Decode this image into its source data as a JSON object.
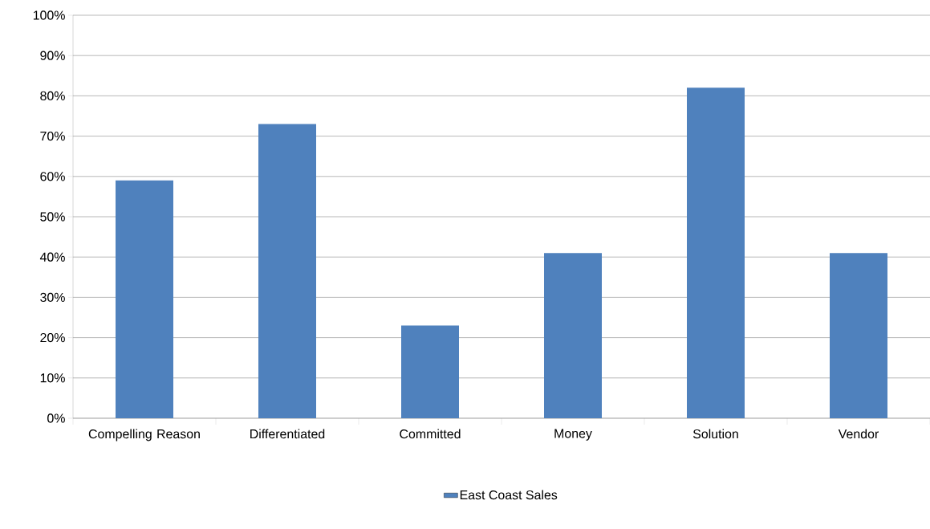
{
  "chart_data": {
    "type": "bar",
    "categories": [
      "Compelling Reason",
      "Differentiated",
      "Committed",
      "Money",
      "Solution",
      "Vendor"
    ],
    "series": [
      {
        "name": "East Coast Sales",
        "color": "#4f81bd",
        "values": [
          59,
          73,
          23,
          41,
          82,
          41
        ]
      }
    ],
    "ylim": [
      0,
      100
    ],
    "yticks": [
      {
        "value": 0,
        "label": "0%"
      },
      {
        "value": 10,
        "label": "10%"
      },
      {
        "value": 20,
        "label": "20%"
      },
      {
        "value": 30,
        "label": "30%"
      },
      {
        "value": 40,
        "label": "40%"
      },
      {
        "value": 50,
        "label": "50%"
      },
      {
        "value": 60,
        "label": "60%"
      },
      {
        "value": 70,
        "label": "70%"
      },
      {
        "value": 80,
        "label": "80%"
      },
      {
        "value": 90,
        "label": "90%"
      },
      {
        "value": 100,
        "label": "100%"
      }
    ],
    "grid": "y",
    "legend": "bottom"
  }
}
